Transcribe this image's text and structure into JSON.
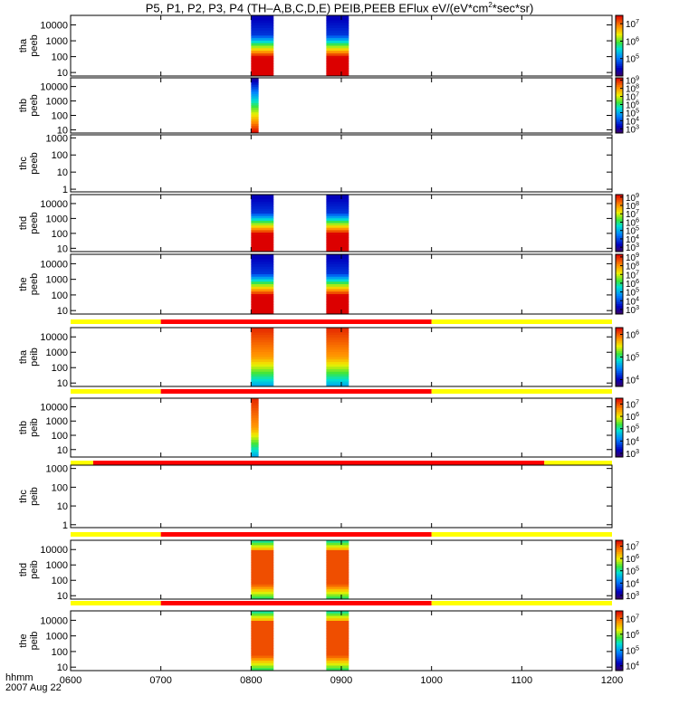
{
  "title": {
    "prefix": "P5, P1, P2, P3, P4 (TH–A,B,C,D,E) PEIB,PEEB EFlux eV/(eV*cm",
    "sup": "2",
    "suffix": "*sec*sr)"
  },
  "footer": {
    "time_label": "hhmm",
    "date_label": "2007 Aug 22"
  },
  "colors": {
    "flag_bar_flag1": "#ff0000",
    "flag_bar_flag0": "#ffff00",
    "axis": "#000000"
  },
  "chart_data": {
    "type": "heatmap",
    "x_axis": {
      "range": [
        "0600",
        "1200"
      ],
      "ticks": [
        "0600",
        "0700",
        "0800",
        "0900",
        "1000",
        "1100",
        "1200"
      ]
    },
    "panels": [
      {
        "ylabel_probe": "tha",
        "ylabel_product": "peeb",
        "ylog": true,
        "ylim": [
          6,
          40000
        ],
        "yticks": [
          "10",
          "100",
          "1000",
          "10000"
        ],
        "colorbar": {
          "ticks": [
            "10^5",
            "10^6",
            "10^7"
          ],
          "range": [
            10000,
            30000000
          ],
          "scale": "log"
        },
        "bursts": [
          {
            "start": "0800",
            "end": "0815",
            "profile": "peak_low"
          },
          {
            "start": "0850",
            "end": "0905",
            "profile": "peak_low"
          }
        ]
      },
      {
        "ylabel_probe": "thb",
        "ylabel_product": "peeb",
        "ylog": true,
        "ylim": [
          6,
          40000
        ],
        "yticks": [
          "10",
          "100",
          "1000",
          "10000"
        ],
        "colorbar": {
          "ticks": [
            "10^3",
            "10^4",
            "10^5",
            "10^6",
            "10^7",
            "10^8",
            "10^9"
          ],
          "range": [
            300,
            2000000000
          ],
          "scale": "log"
        },
        "bursts": [
          {
            "start": "0800",
            "end": "0805",
            "profile": "low_energy_enhanced"
          }
        ]
      },
      {
        "ylabel_probe": "thc",
        "ylabel_product": "peeb",
        "ylog": true,
        "ylim": [
          0.7,
          1500
        ],
        "yticks": [
          "1",
          "10",
          "100",
          "1000"
        ],
        "bursts": []
      },
      {
        "ylabel_probe": "thd",
        "ylabel_product": "peeb",
        "ylog": true,
        "ylim": [
          6,
          40000
        ],
        "yticks": [
          "10",
          "100",
          "1000",
          "10000"
        ],
        "colorbar": {
          "ticks": [
            "10^3",
            "10^4",
            "10^5",
            "10^6",
            "10^7",
            "10^8",
            "10^9"
          ],
          "range": [
            300,
            2000000000
          ],
          "scale": "log"
        },
        "bursts": [
          {
            "start": "0800",
            "end": "0815",
            "profile": "peak_low"
          },
          {
            "start": "0850",
            "end": "0905",
            "profile": "peak_low"
          }
        ]
      },
      {
        "ylabel_probe": "the",
        "ylabel_product": "peeb",
        "ylog": true,
        "ylim": [
          6,
          40000
        ],
        "yticks": [
          "10",
          "100",
          "1000",
          "10000"
        ],
        "colorbar": {
          "ticks": [
            "10^3",
            "10^4",
            "10^5",
            "10^6",
            "10^7",
            "10^8",
            "10^9"
          ],
          "range": [
            300,
            2000000000
          ],
          "scale": "log"
        },
        "bursts": [
          {
            "start": "0800",
            "end": "0815",
            "profile": "peak_low"
          },
          {
            "start": "0850",
            "end": "0905",
            "profile": "peak_low"
          }
        ]
      },
      {
        "ylabel_probe": "tha",
        "ylabel_product": "peib",
        "ylog": true,
        "ylim": [
          6,
          40000
        ],
        "yticks": [
          "10",
          "100",
          "1000",
          "10000"
        ],
        "colorbar": {
          "ticks": [
            "10^4",
            "10^5",
            "10^6"
          ],
          "range": [
            5000,
            2000000
          ],
          "scale": "log"
        },
        "flag_bar": [
          {
            "start": "0600",
            "end": "0700",
            "flag": 0
          },
          {
            "start": "0700",
            "end": "1000",
            "flag": 1
          },
          {
            "start": "1000",
            "end": "1200",
            "flag": 0
          }
        ],
        "bursts": [
          {
            "start": "0800",
            "end": "0815",
            "profile": "ion_top_peak"
          },
          {
            "start": "0850",
            "end": "0905",
            "profile": "ion_top_peak"
          }
        ]
      },
      {
        "ylabel_probe": "thb",
        "ylabel_product": "peib",
        "ylog": true,
        "ylim": [
          3,
          40000
        ],
        "yticks": [
          "10",
          "100",
          "1000",
          "10000"
        ],
        "colorbar": {
          "ticks": [
            "10^3",
            "10^4",
            "10^5",
            "10^6",
            "10^7"
          ],
          "range": [
            500,
            30000000
          ],
          "scale": "log"
        },
        "flag_bar": [
          {
            "start": "0600",
            "end": "0700",
            "flag": 0
          },
          {
            "start": "0700",
            "end": "1000",
            "flag": 1
          },
          {
            "start": "1000",
            "end": "1200",
            "flag": 0
          }
        ],
        "bursts": [
          {
            "start": "0800",
            "end": "0805",
            "profile": "ion_top_peak"
          }
        ]
      },
      {
        "ylabel_probe": "thc",
        "ylabel_product": "peib",
        "ylog": true,
        "ylim": [
          0.7,
          1500
        ],
        "yticks": [
          "1",
          "10",
          "100",
          "1000"
        ],
        "flag_bar": [
          {
            "start": "0600",
            "end": "0615",
            "flag": 0
          },
          {
            "start": "0615",
            "end": "1115",
            "flag": 1
          },
          {
            "start": "1115",
            "end": "1200",
            "flag": 0
          }
        ],
        "bursts": []
      },
      {
        "ylabel_probe": "thd",
        "ylabel_product": "peib",
        "ylog": true,
        "ylim": [
          6,
          40000
        ],
        "yticks": [
          "10",
          "100",
          "1000",
          "10000"
        ],
        "colorbar": {
          "ticks": [
            "10^3",
            "10^4",
            "10^5",
            "10^6",
            "10^7"
          ],
          "range": [
            500,
            30000000
          ],
          "scale": "log"
        },
        "flag_bar": [
          {
            "start": "0600",
            "end": "0700",
            "flag": 0
          },
          {
            "start": "0700",
            "end": "1000",
            "flag": 1
          },
          {
            "start": "1000",
            "end": "1200",
            "flag": 0
          }
        ],
        "bursts": [
          {
            "start": "0800",
            "end": "0815",
            "profile": "ion_mid_peak"
          },
          {
            "start": "0850",
            "end": "0905",
            "profile": "ion_mid_peak"
          }
        ]
      },
      {
        "ylabel_probe": "the",
        "ylabel_product": "peib",
        "ylog": true,
        "ylim": [
          6,
          40000
        ],
        "yticks": [
          "10",
          "100",
          "1000",
          "10000"
        ],
        "colorbar": {
          "ticks": [
            "10^4",
            "10^5",
            "10^6",
            "10^7"
          ],
          "range": [
            5000,
            30000000
          ],
          "scale": "log"
        },
        "flag_bar": [
          {
            "start": "0600",
            "end": "0700",
            "flag": 0
          },
          {
            "start": "0700",
            "end": "1000",
            "flag": 1
          },
          {
            "start": "1000",
            "end": "1200",
            "flag": 0
          }
        ],
        "bursts": [
          {
            "start": "0800",
            "end": "0815",
            "profile": "ion_mid_peak"
          },
          {
            "start": "0850",
            "end": "0905",
            "profile": "ion_mid_peak"
          }
        ]
      }
    ]
  }
}
